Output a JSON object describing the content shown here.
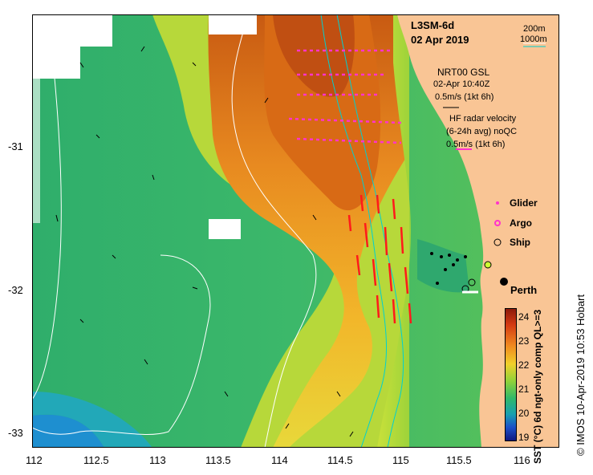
{
  "map": {
    "title_line1": "L3SM-6d",
    "title_line2": "02 Apr 2019",
    "depth_200": "200m",
    "depth_1000": "1000m",
    "gsl_title": "NRT00 GSL",
    "gsl_time": "02-Apr 10:40Z",
    "gsl_scale": "0.5m/s (1kt 6h)",
    "hf_title": "HF radar velocity",
    "hf_avg": "(6-24h avg) noQC",
    "hf_scale": "0.5m/s (1kt 6h)",
    "legend_glider": "Glider",
    "legend_argo": "Argo",
    "legend_ship": "Ship",
    "city": "Perth",
    "x_ticks": [
      "112",
      "112.5",
      "113",
      "113.5",
      "114",
      "114.5",
      "115",
      "115.5",
      "116"
    ],
    "y_ticks": [
      "-31",
      "-32",
      "-33"
    ],
    "colorbar_ticks": [
      "24",
      "23",
      "22",
      "21",
      "20",
      "19"
    ],
    "colorbar_title": "SST (°C) 6d ngt-only comp QL>=3",
    "credit": "© IMOS 10-Apr-2019 10:53 Hobart",
    "colors": {
      "land": "#f9c595",
      "ocean_green": "#3bb46a",
      "warm_orange": "#e88a20",
      "hf_arrow": "#ff1a1a",
      "glider": "#ff33cc"
    }
  }
}
